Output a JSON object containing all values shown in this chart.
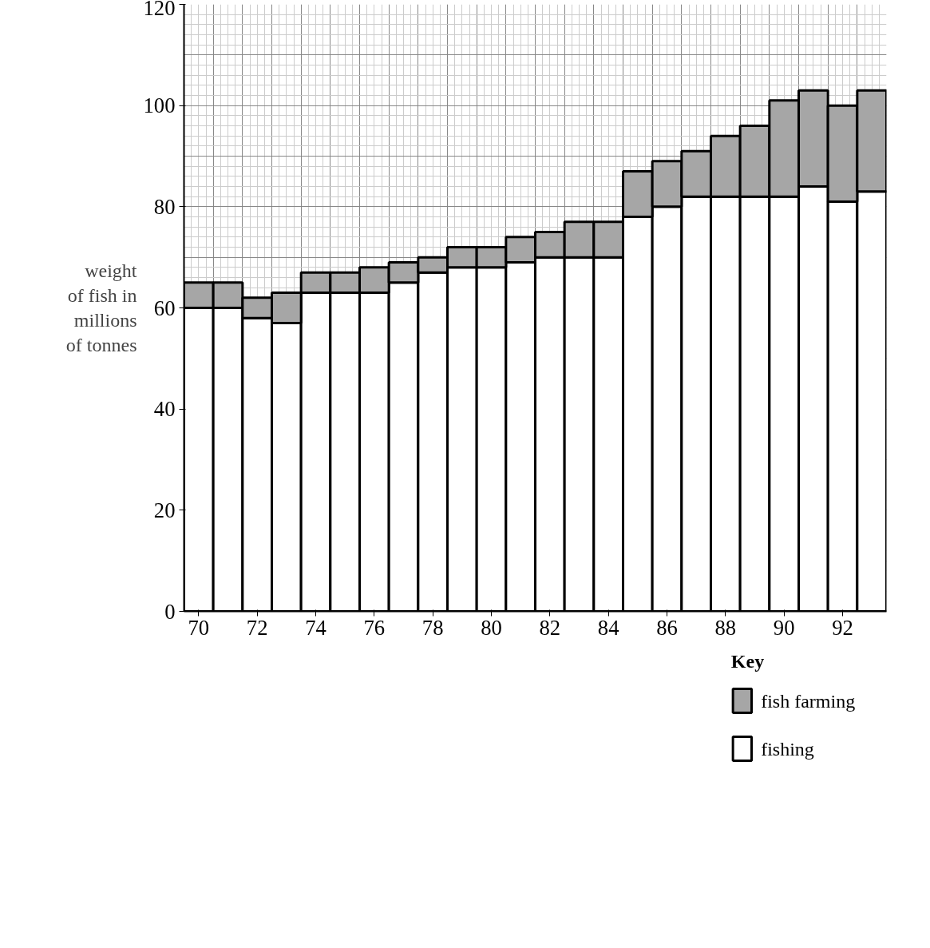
{
  "chart_data": {
    "type": "bar",
    "stacked": true,
    "ylabel": "weight\nof fish in\nmillions\nof tonnes",
    "legend_title": "Key",
    "legend": "bottom right",
    "grid": true,
    "categories": [
      "70",
      null,
      "72",
      null,
      "74",
      null,
      "76",
      null,
      "78",
      null,
      "80",
      null,
      "82",
      null,
      "84",
      null,
      "86",
      null,
      "88",
      null,
      "90",
      null,
      "92",
      null
    ],
    "ylim": [
      0,
      120
    ],
    "yticks": [
      0,
      20,
      40,
      60,
      80,
      100,
      120
    ],
    "series": [
      {
        "name": "fishing",
        "color": "#ffffff",
        "values": [
          60,
          60,
          58,
          57,
          63,
          63,
          63,
          65,
          67,
          68,
          68,
          69,
          70,
          70,
          70,
          78,
          80,
          82,
          82,
          82,
          82,
          84,
          81,
          83
        ]
      },
      {
        "name": "fish farming",
        "color": "#a6a6a6",
        "values": [
          5,
          5,
          4,
          6,
          4,
          4,
          5,
          4,
          3,
          4,
          4,
          5,
          5,
          7,
          7,
          9,
          9,
          9,
          12,
          14,
          19,
          19,
          19,
          20
        ]
      }
    ]
  }
}
